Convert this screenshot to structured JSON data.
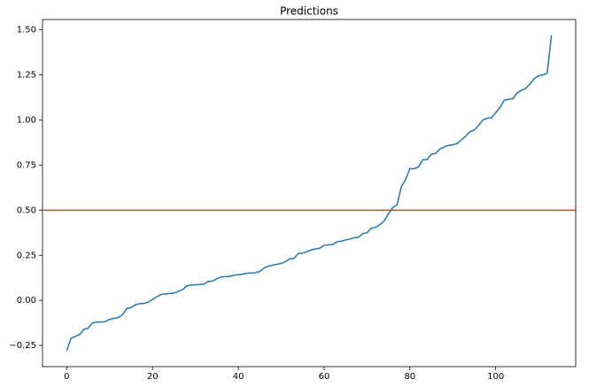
{
  "chart_data": {
    "type": "line",
    "title": "Predictions",
    "x": [
      0,
      1,
      2,
      3,
      4,
      5,
      6,
      7,
      8,
      9,
      10,
      11,
      12,
      13,
      14,
      15,
      16,
      17,
      18,
      19,
      20,
      21,
      22,
      23,
      24,
      25,
      26,
      27,
      28,
      29,
      30,
      31,
      32,
      33,
      34,
      35,
      36,
      37,
      38,
      39,
      40,
      41,
      42,
      43,
      44,
      45,
      46,
      47,
      48,
      49,
      50,
      51,
      52,
      53,
      54,
      55,
      56,
      57,
      58,
      59,
      60,
      61,
      62,
      63,
      64,
      65,
      66,
      67,
      68,
      69,
      70,
      71,
      72,
      73,
      74,
      75,
      76,
      77,
      78,
      79,
      80,
      81,
      82,
      83,
      84,
      85,
      86,
      87,
      88,
      89,
      90,
      91,
      92,
      93,
      94,
      95,
      96,
      97,
      98,
      99,
      100,
      101,
      102,
      103,
      104,
      105,
      106,
      107,
      108,
      109,
      110,
      111,
      112,
      113
    ],
    "values": [
      -0.28,
      -0.21,
      -0.2,
      -0.19,
      -0.16,
      -0.155,
      -0.125,
      -0.12,
      -0.12,
      -0.118,
      -0.105,
      -0.1,
      -0.095,
      -0.08,
      -0.045,
      -0.04,
      -0.025,
      -0.018,
      -0.017,
      -0.01,
      0.005,
      0.02,
      0.033,
      0.035,
      0.038,
      0.04,
      0.05,
      0.06,
      0.08,
      0.085,
      0.087,
      0.088,
      0.09,
      0.105,
      0.107,
      0.12,
      0.13,
      0.132,
      0.133,
      0.14,
      0.142,
      0.145,
      0.15,
      0.152,
      0.153,
      0.16,
      0.18,
      0.19,
      0.195,
      0.2,
      0.205,
      0.215,
      0.23,
      0.233,
      0.26,
      0.262,
      0.27,
      0.28,
      0.285,
      0.29,
      0.305,
      0.308,
      0.31,
      0.325,
      0.328,
      0.335,
      0.34,
      0.347,
      0.35,
      0.37,
      0.375,
      0.4,
      0.405,
      0.42,
      0.44,
      0.48,
      0.515,
      0.53,
      0.63,
      0.67,
      0.73,
      0.73,
      0.74,
      0.78,
      0.78,
      0.81,
      0.815,
      0.84,
      0.85,
      0.86,
      0.862,
      0.87,
      0.89,
      0.91,
      0.935,
      0.945,
      0.97,
      1.0,
      1.01,
      1.012,
      1.04,
      1.07,
      1.11,
      1.115,
      1.118,
      1.15,
      1.165,
      1.175,
      1.2,
      1.23,
      1.245,
      1.25,
      1.26,
      1.47
    ],
    "color": "#1f77b4",
    "hlines": [
      {
        "value": 0.5,
        "color": "#e8392c"
      }
    ],
    "xlim": [
      -5.65,
      118.65
    ],
    "xticks": [
      0,
      20,
      40,
      60,
      80,
      100
    ],
    "ylim": [
      -0.3675,
      1.5575
    ],
    "yticks": [
      {
        "value": -0.25,
        "label": "−0.25"
      },
      {
        "value": 0,
        "label": "0.00"
      },
      {
        "value": 0.25,
        "label": "0.25"
      },
      {
        "value": 0.5,
        "label": "0.50"
      },
      {
        "value": 0.75,
        "label": "0.75"
      },
      {
        "value": 1,
        "label": "1.00"
      },
      {
        "value": 1.25,
        "label": "1.25"
      },
      {
        "value": 1.5,
        "label": "1.50"
      }
    ],
    "grid": false
  }
}
